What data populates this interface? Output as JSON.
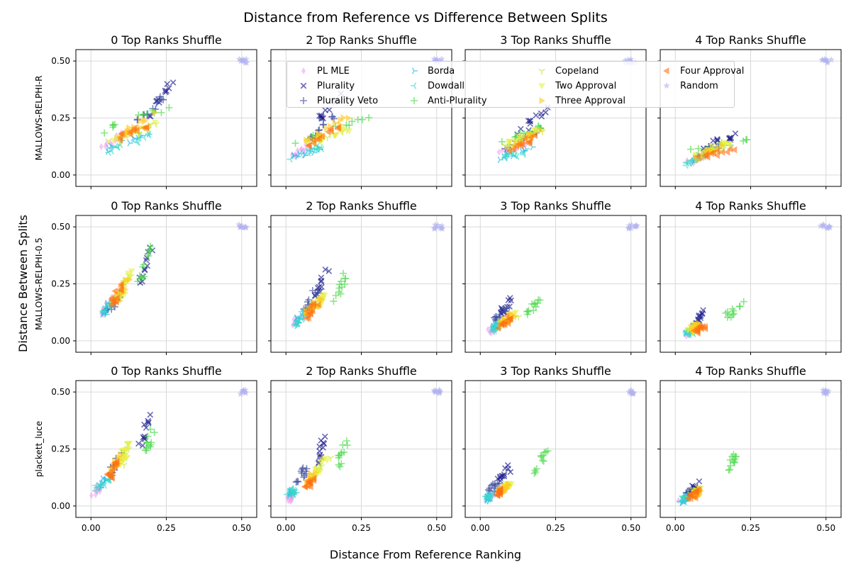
{
  "figure": {
    "suptitle": "Distance from Reference vs Difference Between Splits",
    "xlabel": "Distance From Reference Ranking",
    "ylabel": "Distance Between Splits"
  },
  "chart_data": {
    "type": "scatter",
    "rows": [
      "MALLOWS-RELPHI-R",
      "MALLOWS-RELPHI-0.5",
      "plackett_luce"
    ],
    "columns": [
      "0 Top Ranks Shuffle",
      "2 Top Ranks Shuffle",
      "3 Top Ranks Shuffle",
      "4 Top Ranks Shuffle"
    ],
    "xlim": [
      -0.05,
      0.55
    ],
    "ylim": [
      -0.05,
      0.55
    ],
    "xticks": [
      0.0,
      0.25,
      0.5
    ],
    "yticks": [
      0.0,
      0.25,
      0.5
    ],
    "xtick_labels": [
      "0.00",
      "0.25",
      "0.50"
    ],
    "ytick_labels": [
      "0.00",
      "0.25",
      "0.50"
    ],
    "grid": true,
    "legend_placement": "top",
    "series": [
      {
        "name": "PL MLE",
        "marker": "diamond",
        "color": "#f0a3f0"
      },
      {
        "name": "Plurality",
        "marker": "x",
        "color": "#1a1a8c"
      },
      {
        "name": "Plurality Veto",
        "marker": "plus",
        "color": "#3a4a9c"
      },
      {
        "name": "Borda",
        "marker": "tri-right",
        "color": "#2ab8e8"
      },
      {
        "name": "Dowdall",
        "marker": "tri-left",
        "color": "#3ad8c8"
      },
      {
        "name": "Anti-Plurality",
        "marker": "plus",
        "color": "#4ad84a"
      },
      {
        "name": "Copeland",
        "marker": "tri-down",
        "color": "#c8e830"
      },
      {
        "name": "Two Approval",
        "marker": "triangle-down",
        "color": "#e8f040"
      },
      {
        "name": "Three Approval",
        "marker": "triangle-right",
        "color": "#ffc820"
      },
      {
        "name": "Four Approval",
        "marker": "triangle-left",
        "color": "#ff7010"
      },
      {
        "name": "Random",
        "marker": "star",
        "color": "#b0b0f0"
      }
    ],
    "panels": [
      [
        {
          "PL MLE": [
            0.03,
            0.12,
            0.15
          ],
          "Plurality": [
            0.18,
            0.27,
            0.33
          ],
          "Plurality Veto": [
            0.15,
            0.25,
            0.29
          ],
          "Borda": [
            0.05,
            0.2,
            0.15
          ],
          "Dowdall": [
            0.05,
            0.2,
            0.14
          ],
          "Anti-Plurality": [
            0.03,
            0.29,
            0.25
          ],
          "Copeland": [
            0.06,
            0.22,
            0.18
          ],
          "Two Approval": [
            0.07,
            0.22,
            0.19
          ],
          "Three Approval": [
            0.09,
            0.22,
            0.22
          ],
          "Four Approval": [
            0.08,
            0.22,
            0.2
          ],
          "Random": [
            0.49,
            0.52,
            0.5
          ]
        },
        {
          "PL MLE": [
            0.02,
            0.08,
            0.1
          ],
          "Plurality": [
            0.1,
            0.2,
            0.3
          ],
          "Plurality Veto": [
            0.08,
            0.18,
            0.22
          ],
          "Borda": [
            0.02,
            0.12,
            0.1
          ],
          "Dowdall": [
            0.02,
            0.12,
            0.1
          ],
          "Anti-Plurality": [
            0.03,
            0.28,
            0.2
          ],
          "Copeland": [
            0.05,
            0.22,
            0.17
          ],
          "Two Approval": [
            0.06,
            0.22,
            0.17
          ],
          "Three Approval": [
            0.07,
            0.2,
            0.2
          ],
          "Four Approval": [
            0.07,
            0.18,
            0.17
          ],
          "Random": [
            0.49,
            0.52,
            0.5
          ]
        },
        {
          "PL MLE": [
            0.06,
            0.16,
            0.12
          ],
          "Plurality": [
            0.12,
            0.22,
            0.23
          ],
          "Plurality Veto": [
            0.08,
            0.2,
            0.16
          ],
          "Borda": [
            0.06,
            0.18,
            0.1
          ],
          "Dowdall": [
            0.06,
            0.16,
            0.09
          ],
          "Anti-Plurality": [
            0.07,
            0.23,
            0.18
          ],
          "Copeland": [
            0.08,
            0.2,
            0.15
          ],
          "Two Approval": [
            0.09,
            0.2,
            0.17
          ],
          "Three Approval": [
            0.1,
            0.2,
            0.16
          ],
          "Four Approval": [
            0.08,
            0.18,
            0.13
          ],
          "Random": [
            0.48,
            0.52,
            0.5
          ]
        },
        {
          "PL MLE": [
            0.04,
            0.1,
            0.07
          ],
          "Plurality": [
            0.08,
            0.22,
            0.15
          ],
          "Plurality Veto": [
            0.06,
            0.16,
            0.11
          ],
          "Borda": [
            0.03,
            0.1,
            0.07
          ],
          "Dowdall": [
            0.03,
            0.1,
            0.07
          ],
          "Anti-Plurality": [
            0.06,
            0.28,
            0.14
          ],
          "Copeland": [
            0.05,
            0.16,
            0.1
          ],
          "Two Approval": [
            0.06,
            0.18,
            0.11
          ],
          "Three Approval": [
            0.07,
            0.16,
            0.1
          ],
          "Four Approval": [
            0.06,
            0.22,
            0.1
          ],
          "Random": [
            0.48,
            0.52,
            0.5
          ]
        }
      ],
      [
        {
          "PL MLE": [
            0.03,
            0.07,
            0.15
          ],
          "Plurality": [
            0.16,
            0.2,
            0.33
          ],
          "Plurality Veto": [
            0.05,
            0.1,
            0.17
          ],
          "Borda": [
            0.04,
            0.08,
            0.15
          ],
          "Dowdall": [
            0.04,
            0.08,
            0.15
          ],
          "Anti-Plurality": [
            0.16,
            0.2,
            0.33
          ],
          "Copeland": [
            0.08,
            0.13,
            0.24
          ],
          "Two Approval": [
            0.1,
            0.13,
            0.25
          ],
          "Three Approval": [
            0.08,
            0.12,
            0.22
          ],
          "Four Approval": [
            0.07,
            0.1,
            0.2
          ],
          "Random": [
            0.49,
            0.52,
            0.5
          ]
        },
        {
          "PL MLE": [
            0.03,
            0.06,
            0.1
          ],
          "Plurality": [
            0.1,
            0.14,
            0.26
          ],
          "Plurality Veto": [
            0.06,
            0.1,
            0.17
          ],
          "Borda": [
            0.03,
            0.06,
            0.1
          ],
          "Dowdall": [
            0.03,
            0.06,
            0.1
          ],
          "Anti-Plurality": [
            0.16,
            0.2,
            0.23
          ],
          "Copeland": [
            0.06,
            0.14,
            0.16
          ],
          "Two Approval": [
            0.08,
            0.14,
            0.17
          ],
          "Three Approval": [
            0.07,
            0.12,
            0.15
          ],
          "Four Approval": [
            0.06,
            0.1,
            0.13
          ],
          "Random": [
            0.49,
            0.52,
            0.5
          ]
        },
        {
          "PL MLE": [
            0.03,
            0.06,
            0.06
          ],
          "Plurality": [
            0.06,
            0.11,
            0.15
          ],
          "Plurality Veto": [
            0.05,
            0.09,
            0.12
          ],
          "Borda": [
            0.04,
            0.06,
            0.06
          ],
          "Dowdall": [
            0.04,
            0.06,
            0.06
          ],
          "Anti-Plurality": [
            0.16,
            0.2,
            0.16
          ],
          "Copeland": [
            0.06,
            0.13,
            0.09
          ],
          "Two Approval": [
            0.07,
            0.12,
            0.1
          ],
          "Three Approval": [
            0.07,
            0.11,
            0.09
          ],
          "Four Approval": [
            0.06,
            0.1,
            0.08
          ],
          "Random": [
            0.49,
            0.52,
            0.5
          ]
        },
        {
          "PL MLE": [
            0.04,
            0.06,
            0.04
          ],
          "Plurality": [
            0.07,
            0.09,
            0.1
          ],
          "Plurality Veto": [
            0.06,
            0.08,
            0.08
          ],
          "Borda": [
            0.04,
            0.06,
            0.04
          ],
          "Dowdall": [
            0.04,
            0.06,
            0.04
          ],
          "Anti-Plurality": [
            0.16,
            0.22,
            0.13
          ],
          "Copeland": [
            0.04,
            0.08,
            0.05
          ],
          "Two Approval": [
            0.05,
            0.08,
            0.06
          ],
          "Three Approval": [
            0.06,
            0.09,
            0.06
          ],
          "Four Approval": [
            0.06,
            0.1,
            0.05
          ],
          "Random": [
            0.48,
            0.52,
            0.5
          ]
        }
      ],
      [
        {
          "PL MLE": [
            0.01,
            0.03,
            0.07
          ],
          "Plurality": [
            0.16,
            0.2,
            0.32
          ],
          "Plurality Veto": [
            0.06,
            0.1,
            0.18
          ],
          "Borda": [
            0.02,
            0.06,
            0.1
          ],
          "Dowdall": [
            0.02,
            0.06,
            0.1
          ],
          "Anti-Plurality": [
            0.18,
            0.21,
            0.29
          ],
          "Copeland": [
            0.1,
            0.13,
            0.24
          ],
          "Two Approval": [
            0.1,
            0.13,
            0.24
          ],
          "Three Approval": [
            0.07,
            0.1,
            0.19
          ],
          "Four Approval": [
            0.06,
            0.09,
            0.16
          ],
          "Random": [
            0.49,
            0.52,
            0.5
          ]
        },
        {
          "PL MLE": [
            0.01,
            0.02,
            0.04
          ],
          "Plurality": [
            0.1,
            0.13,
            0.24
          ],
          "Plurality Veto": [
            0.04,
            0.06,
            0.13
          ],
          "Borda": [
            0.01,
            0.03,
            0.06
          ],
          "Dowdall": [
            0.01,
            0.03,
            0.06
          ],
          "Anti-Plurality": [
            0.17,
            0.2,
            0.23
          ],
          "Copeland": [
            0.08,
            0.14,
            0.16
          ],
          "Two Approval": [
            0.09,
            0.13,
            0.16
          ],
          "Three Approval": [
            0.07,
            0.1,
            0.12
          ],
          "Four Approval": [
            0.06,
            0.09,
            0.1
          ],
          "Random": [
            0.49,
            0.52,
            0.5
          ]
        },
        {
          "PL MLE": [
            0.02,
            0.04,
            0.04
          ],
          "Plurality": [
            0.06,
            0.1,
            0.14
          ],
          "Plurality Veto": [
            0.03,
            0.06,
            0.08
          ],
          "Borda": [
            0.02,
            0.04,
            0.04
          ],
          "Dowdall": [
            0.02,
            0.04,
            0.04
          ],
          "Anti-Plurality": [
            0.18,
            0.22,
            0.2
          ],
          "Copeland": [
            0.06,
            0.1,
            0.08
          ],
          "Two Approval": [
            0.07,
            0.1,
            0.08
          ],
          "Three Approval": [
            0.06,
            0.09,
            0.07
          ],
          "Four Approval": [
            0.05,
            0.08,
            0.06
          ],
          "Random": [
            0.49,
            0.51,
            0.5
          ]
        },
        {
          "PL MLE": [
            0.02,
            0.04,
            0.03
          ],
          "Plurality": [
            0.05,
            0.08,
            0.08
          ],
          "Plurality Veto": [
            0.03,
            0.06,
            0.05
          ],
          "Borda": [
            0.02,
            0.04,
            0.03
          ],
          "Dowdall": [
            0.02,
            0.04,
            0.03
          ],
          "Anti-Plurality": [
            0.18,
            0.2,
            0.19
          ],
          "Copeland": [
            0.05,
            0.08,
            0.06
          ],
          "Two Approval": [
            0.06,
            0.08,
            0.06
          ],
          "Three Approval": [
            0.06,
            0.08,
            0.06
          ],
          "Four Approval": [
            0.05,
            0.08,
            0.05
          ],
          "Random": [
            0.49,
            0.52,
            0.5
          ]
        }
      ]
    ]
  }
}
